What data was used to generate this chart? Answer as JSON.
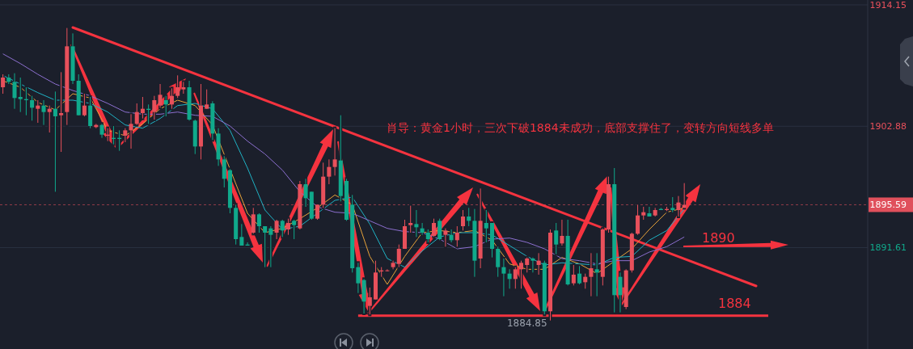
{
  "chart_data": {
    "type": "candlestick",
    "categories": [
      null,
      null,
      null,
      null,
      null,
      null,
      null,
      null,
      null,
      null,
      null,
      null,
      null,
      null,
      null,
      null,
      null,
      null,
      null,
      null,
      null,
      null,
      null,
      null,
      null,
      null,
      null,
      null,
      null,
      null,
      null,
      null,
      null,
      null,
      null,
      null,
      null,
      null,
      null,
      null,
      null,
      null,
      null,
      null,
      null,
      null,
      null,
      null,
      null,
      null,
      null,
      null,
      null,
      null,
      null,
      null,
      null,
      null,
      null,
      null,
      null,
      null,
      null,
      null,
      null,
      null,
      null,
      null,
      null,
      null,
      null,
      null,
      null,
      null,
      null,
      null,
      null,
      null,
      null,
      null,
      null,
      null,
      null,
      null,
      null,
      null,
      null,
      null,
      null,
      null,
      null,
      null,
      null,
      null,
      null,
      null,
      null,
      null,
      null,
      null,
      null,
      null,
      null,
      null,
      null,
      null,
      null,
      null,
      null,
      null,
      null,
      null,
      null,
      null,
      null,
      null,
      null,
      null,
      null,
      null,
      null,
      null,
      null,
      null,
      null,
      null,
      null,
      null,
      null,
      null,
      null,
      null,
      null,
      null,
      null,
      null,
      null,
      null,
      null,
      null,
      null,
      null,
      null,
      null,
      null,
      null,
      null,
      null,
      null
    ],
    "ohlc": [
      [
        1906.5,
        1907.7,
        1905.9,
        1907.4
      ],
      [
        1907.4,
        1907.7,
        1906.8,
        1907.0
      ],
      [
        1907.0,
        1907.8,
        1904.5,
        1905.5
      ],
      [
        1905.6,
        1907.4,
        1904.2,
        1905.4
      ],
      [
        1905.4,
        1906.5,
        1903.9,
        1905.3
      ],
      [
        1905.3,
        1905.7,
        1903.4,
        1904.6
      ],
      [
        1904.5,
        1905.3,
        1903.2,
        1904.8
      ],
      [
        1904.8,
        1905.3,
        1903.0,
        1904.2
      ],
      [
        1904.2,
        1904.8,
        1902.3,
        1904.5
      ],
      [
        1904.5,
        1906.1,
        1896.8,
        1903.8
      ],
      [
        1903.9,
        1907.9,
        1900.5,
        1904.1
      ],
      [
        1904.2,
        1912.0,
        1903.0,
        1910.3
      ],
      [
        1910.3,
        1911.5,
        1906.8,
        1907.1
      ],
      [
        1907.1,
        1907.7,
        1903.9,
        1903.9
      ],
      [
        1903.9,
        1905.9,
        1903.8,
        1904.8
      ],
      [
        1904.8,
        1905.6,
        1902.7,
        1902.9
      ],
      [
        1902.8,
        1903.1,
        1902.7,
        1903.0
      ],
      [
        1903.0,
        1903.1,
        1901.8,
        1902.1
      ],
      [
        1902.0,
        1902.7,
        1901.5,
        1902.1
      ],
      [
        1901.8,
        1902.9,
        1901.2,
        1901.7
      ],
      [
        1901.8,
        1902.5,
        1900.6,
        1901.7
      ],
      [
        1902.0,
        1902.7,
        1901.4,
        1902.5
      ],
      [
        1902.5,
        1904.0,
        1900.8,
        1903.1
      ],
      [
        1903.1,
        1905.0,
        1903.0,
        1904.2
      ],
      [
        1904.1,
        1905.6,
        1903.6,
        1904.5
      ],
      [
        1904.5,
        1904.9,
        1903.1,
        1904.4
      ],
      [
        1904.2,
        1905.7,
        1903.5,
        1905.3
      ],
      [
        1904.8,
        1906.8,
        1904.6,
        1905.8
      ],
      [
        1905.3,
        1905.7,
        1903.8,
        1904.9
      ],
      [
        1904.9,
        1906.4,
        1904.5,
        1905.7
      ],
      [
        1905.7,
        1907.6,
        1905.5,
        1906.5
      ],
      [
        1906.3,
        1907.0,
        1905.9,
        1906.5
      ],
      [
        1906.5,
        1907.1,
        1903.4,
        1903.5
      ],
      [
        1903.4,
        1903.5,
        1900.3,
        1901.0
      ],
      [
        1901.0,
        1906.8,
        1899.8,
        1904.8
      ],
      [
        1904.5,
        1906.3,
        1904.5,
        1904.9
      ],
      [
        1905.0,
        1905.2,
        1901.6,
        1902.2
      ],
      [
        1902.2,
        1902.7,
        1899.2,
        1899.8
      ],
      [
        1899.8,
        1900.1,
        1897.2,
        1898.0
      ],
      [
        1898.8,
        1898.9,
        1894.8,
        1895.3
      ],
      [
        1895.3,
        1895.6,
        1891.9,
        1892.4
      ],
      [
        1892.6,
        1893.8,
        1891.8,
        1891.8
      ],
      [
        1891.9,
        1892.1,
        1891.8,
        1891.8
      ],
      [
        1893.0,
        1895.3,
        1892.9,
        1894.7
      ],
      [
        1894.7,
        1894.8,
        1893.0,
        1893.6
      ],
      [
        1893.6,
        1893.6,
        1889.8,
        1893.0
      ],
      [
        1893.4,
        1893.6,
        1889.8,
        1892.8
      ],
      [
        1893.0,
        1894.2,
        1892.4,
        1894.1
      ],
      [
        1894.1,
        1894.2,
        1892.6,
        1893.2
      ],
      [
        1893.3,
        1894.3,
        1892.8,
        1893.9
      ],
      [
        1894.1,
        1894.2,
        1892.4,
        1893.7
      ],
      [
        1893.4,
        1897.8,
        1893.3,
        1897.5
      ],
      [
        1897.5,
        1898.0,
        1895.4,
        1896.2
      ],
      [
        1896.8,
        1896.8,
        1894.2,
        1894.3
      ],
      [
        1894.3,
        1895.6,
        1894.2,
        1895.6
      ],
      [
        1895.6,
        1899.5,
        1895.3,
        1898.2
      ],
      [
        1898.2,
        1899.8,
        1897.5,
        1899.1
      ],
      [
        1899.1,
        1902.7,
        1898.3,
        1899.8
      ],
      [
        1899.7,
        1903.9,
        1895.9,
        1896.4
      ],
      [
        1897.8,
        1898.0,
        1894.1,
        1894.2
      ],
      [
        1895.6,
        1896.5,
        1889.3,
        1889.7
      ],
      [
        1889.8,
        1890.2,
        1887.4,
        1888.3
      ],
      [
        1888.6,
        1888.7,
        1885.5,
        1886.6
      ],
      [
        1886.2,
        1887.9,
        1885.4,
        1887.0
      ],
      [
        1886.8,
        1890.4,
        1886.8,
        1889.3
      ],
      [
        1889.4,
        1889.8,
        1888.9,
        1889.5
      ],
      [
        1889.5,
        1889.6,
        1889.4,
        1889.5
      ],
      [
        1889.8,
        1890.4,
        1889.6,
        1890.2
      ],
      [
        1890.1,
        1891.9,
        1889.8,
        1891.5
      ],
      [
        1891.5,
        1894.2,
        1891.5,
        1893.6
      ],
      [
        1893.7,
        1895.5,
        1893.0,
        1893.9
      ],
      [
        1893.8,
        1895.1,
        1892.6,
        1893.5
      ],
      [
        1893.4,
        1893.9,
        1892.8,
        1893.0
      ],
      [
        1893.0,
        1893.3,
        1892.1,
        1892.4
      ],
      [
        1892.7,
        1894.3,
        1892.6,
        1893.9
      ],
      [
        1894.1,
        1894.3,
        1892.3,
        1892.4
      ],
      [
        1892.8,
        1893.4,
        1891.7,
        1893.2
      ],
      [
        1892.8,
        1893.3,
        1892.1,
        1892.3
      ],
      [
        1892.3,
        1893.6,
        1891.7,
        1893.0
      ],
      [
        1893.6,
        1895.1,
        1893.2,
        1894.5
      ],
      [
        1894.5,
        1895.3,
        1893.6,
        1894.1
      ],
      [
        1894.1,
        1895.2,
        1888.9,
        1890.4
      ],
      [
        1890.6,
        1897.1,
        1889.7,
        1894.1
      ],
      [
        1893.9,
        1895.1,
        1892.1,
        1893.4
      ],
      [
        1893.9,
        1893.9,
        1890.7,
        1891.5
      ],
      [
        1891.5,
        1891.7,
        1888.9,
        1889.8
      ],
      [
        1889.8,
        1890.6,
        1887.1,
        1889.2
      ],
      [
        1889.2,
        1889.6,
        1887.8,
        1888.7
      ],
      [
        1888.7,
        1889.8,
        1887.8,
        1889.6
      ],
      [
        1889.6,
        1890.4,
        1887.8,
        1890.2
      ],
      [
        1890.0,
        1890.7,
        1889.3,
        1890.6
      ],
      [
        1890.6,
        1890.7,
        1889.3,
        1890.4
      ],
      [
        1890.0,
        1891.1,
        1889.1,
        1890.4
      ],
      [
        1890.2,
        1890.4,
        1885.4,
        1885.7
      ],
      [
        1885.7,
        1893.3,
        1884.85,
        1893.0
      ],
      [
        1893.2,
        1893.9,
        1891.0,
        1891.9
      ],
      [
        1892.0,
        1894.2,
        1891.8,
        1892.7
      ],
      [
        1892.7,
        1894.2,
        1888.1,
        1888.2
      ],
      [
        1888.3,
        1890.0,
        1888.1,
        1889.1
      ],
      [
        1889.2,
        1889.9,
        1888.2,
        1888.3
      ],
      [
        1888.4,
        1889.2,
        1887.8,
        1888.9
      ],
      [
        1888.9,
        1891.1,
        1887.1,
        1889.7
      ],
      [
        1889.6,
        1891.1,
        1887.1,
        1889.3
      ],
      [
        1888.9,
        1893.4,
        1888.1,
        1893.3
      ],
      [
        1893.3,
        1898.2,
        1893.0,
        1897.5
      ],
      [
        1897.5,
        1899.0,
        1885.6,
        1887.2
      ],
      [
        1888.9,
        1889.3,
        1885.6,
        1887.2
      ],
      [
        1886.1,
        1889.6,
        1885.9,
        1889.5
      ],
      [
        1889.5,
        1893.0,
        1889.3,
        1892.9
      ],
      [
        1892.9,
        1895.6,
        1892.8,
        1894.6
      ],
      [
        1894.6,
        1895.4,
        1894.2,
        1894.9
      ],
      [
        1894.8,
        1895.4,
        1894.5,
        1894.5
      ],
      [
        1894.6,
        1895.3,
        1894.5,
        1895.1
      ],
      [
        1895.2,
        1895.3,
        1895.1,
        1895.1
      ],
      [
        1895.1,
        1895.4,
        1895.0,
        1895.2
      ],
      [
        1895.3,
        1896.3,
        1894.9,
        1895.1
      ],
      [
        1895.1,
        1896.4,
        1894.5,
        1895.8
      ],
      [
        1895.3,
        1897.6,
        1895.3,
        1895.59
      ],
      null,
      null,
      null,
      null,
      null,
      null,
      null,
      null,
      null,
      null,
      null,
      null,
      null,
      null,
      null,
      null,
      null,
      null,
      null,
      null,
      null,
      null,
      null,
      null,
      null,
      null,
      null,
      null,
      null,
      null,
      null
    ],
    "series": [
      {
        "type": "line",
        "color": "#e8a33a",
        "values": [
          1907.1,
          null,
          null,
          1906.5,
          null,
          null,
          1905.1,
          null,
          null,
          1904.4,
          null,
          null,
          1905.9,
          null,
          null,
          1905.5,
          null,
          null,
          1902.5,
          null,
          null,
          1902.0,
          null,
          null,
          1903.1,
          null,
          null,
          1904.5,
          null,
          null,
          1905.3,
          null,
          null,
          1904.8,
          null,
          null,
          1903.0,
          null,
          null,
          null,
          null,
          null,
          1894.8,
          null,
          null,
          1893.0,
          null,
          null,
          1893.4,
          null,
          null,
          1894.3,
          null,
          null,
          1895.3,
          null,
          null,
          1896.5,
          null,
          null,
          1895.6,
          null,
          null,
          1890.8,
          null,
          null,
          1888.2,
          null,
          null,
          1890.8,
          null,
          null,
          1893.0,
          null,
          null,
          1893.2,
          null,
          null,
          1893.0,
          null,
          null,
          1893.2,
          null,
          null,
          1892.3,
          null,
          null,
          1890.1,
          null,
          null,
          1889.6,
          null,
          null,
          1889.6,
          null,
          null,
          1890.7,
          null,
          null,
          1890.1,
          null,
          null,
          1889.2,
          null,
          null,
          null,
          null,
          null,
          1891.5,
          null,
          null,
          1893.3,
          null,
          null,
          1894.9,
          null,
          null,
          1895.3,
          null,
          null,
          null,
          null,
          null,
          null,
          null,
          null,
          null,
          null,
          null,
          null,
          null,
          null,
          null,
          null,
          null,
          null,
          null,
          null,
          null,
          null,
          null,
          null,
          null,
          null,
          null,
          null,
          null,
          null,
          null
        ]
      },
      {
        "type": "line",
        "color": "#1fb2c4",
        "values": [
          1907.6,
          null,
          null,
          1906.8,
          null,
          null,
          1906.0,
          null,
          null,
          1905.3,
          null,
          null,
          1905.3,
          null,
          null,
          1905.0,
          null,
          null,
          1904.2,
          null,
          null,
          1903.0,
          null,
          null,
          1902.7,
          null,
          null,
          1903.6,
          null,
          null,
          1904.8,
          null,
          null,
          1905.0,
          null,
          null,
          1904.5,
          null,
          null,
          1902.5,
          null,
          null,
          1899.0,
          null,
          null,
          1895.1,
          null,
          null,
          1893.3,
          null,
          null,
          1893.6,
          null,
          null,
          1894.8,
          null,
          null,
          1896.0,
          null,
          null,
          1896.3,
          null,
          null,
          1893.8,
          null,
          null,
          1890.6,
          null,
          null,
          1889.8,
          null,
          null,
          1891.3,
          null,
          null,
          1892.6,
          null,
          null,
          1893.0,
          null,
          null,
          1893.0,
          null,
          null,
          1892.8,
          null,
          null,
          1891.8,
          null,
          null,
          1890.8,
          null,
          null,
          1890.0,
          null,
          null,
          1890.2,
          null,
          null,
          1890.1,
          null,
          null,
          1890.0,
          null,
          null,
          1890.7,
          null,
          null,
          1890.8,
          null,
          null,
          1892.3,
          null,
          null,
          1893.2,
          null,
          null,
          1895.2,
          null,
          null,
          null,
          null,
          null,
          null,
          null,
          null,
          null,
          null,
          null,
          null,
          null,
          null,
          null,
          null,
          null,
          null,
          null,
          null,
          null,
          null,
          null,
          null,
          null,
          null,
          null,
          null,
          null,
          null,
          null
        ]
      },
      {
        "type": "line",
        "color": "#8c6fcf",
        "values": [
          1909.6,
          null,
          null,
          1908.7,
          null,
          null,
          1907.7,
          null,
          null,
          1906.8,
          null,
          null,
          1906.2,
          null,
          null,
          1905.7,
          null,
          null,
          1905.0,
          null,
          null,
          1904.2,
          null,
          null,
          1904.0,
          null,
          null,
          1904.0,
          null,
          null,
          1904.2,
          null,
          null,
          1903.9,
          null,
          null,
          1903.8,
          null,
          null,
          1902.9,
          null,
          null,
          1901.5,
          null,
          null,
          1900.3,
          null,
          null,
          1898.8,
          null,
          null,
          1896.8,
          null,
          null,
          1895.4,
          null,
          null,
          1894.9,
          null,
          null,
          1894.8,
          null,
          null,
          1894.1,
          null,
          null,
          1893.4,
          null,
          null,
          1893.1,
          null,
          null,
          1893.0,
          null,
          null,
          1892.4,
          null,
          null,
          1891.5,
          null,
          null,
          1891.7,
          null,
          null,
          1892.4,
          null,
          null,
          1892.5,
          null,
          null,
          1892.1,
          null,
          null,
          1891.5,
          null,
          null,
          1890.6,
          null,
          null,
          1890.4,
          null,
          null,
          1890.1,
          null,
          null,
          1890.4,
          null,
          null,
          1890.4,
          null,
          null,
          1891.2,
          null,
          null,
          1891.7,
          null,
          null,
          1892.6,
          null,
          null,
          null,
          null,
          null,
          null,
          null,
          null,
          null,
          null,
          null,
          null,
          null,
          null,
          null,
          null,
          null,
          null,
          null,
          null,
          null,
          null,
          null,
          null,
          null,
          null,
          null,
          null,
          null,
          null,
          null
        ]
      }
    ],
    "ylim": [
      1882.2,
      1914.6
    ],
    "yticks": [
      1914.15,
      1902.88,
      1891.61
    ],
    "grid": "y",
    "marker": "none",
    "line_style": "solid",
    "ref_lines": [
      {
        "axis": "y",
        "value": 1895.59,
        "label": "1895.59",
        "color": "#e0505c",
        "line_style": "dashed"
      },
      {
        "axis": "y",
        "value": 1885.3,
        "color": "#f5333f",
        "line_style": "solid"
      }
    ],
    "annotations": [
      "肖导：黄金1小时，三次下破1884未成功，底部支撑住了，变转方向短线多单",
      "1890",
      "1884",
      "1884.85"
    ]
  }
}
